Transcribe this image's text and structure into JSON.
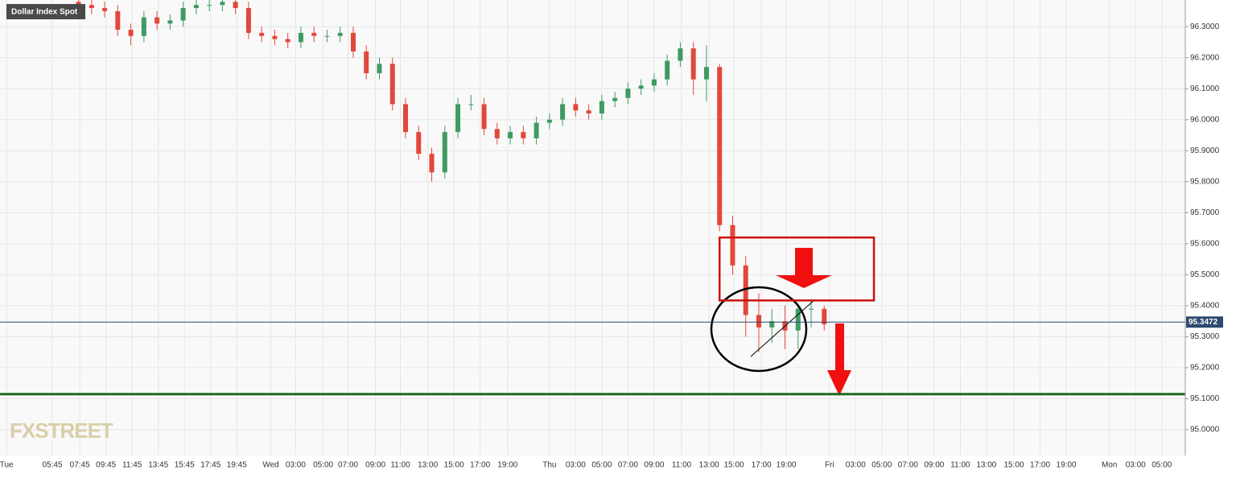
{
  "chart_data": {
    "type": "candlestick",
    "title": "Dollar Index Spot",
    "watermark": "FXSTREET",
    "up_color": "#3f9a63",
    "down_color": "#e2473b",
    "grid": true,
    "xlim": [
      0,
      90.6
    ],
    "ylim": [
      94.917,
      96.386
    ],
    "xticks": [
      {
        "value": 0.5,
        "label": "Tue"
      },
      {
        "value": 4,
        "label": "05:45"
      },
      {
        "value": 6.1,
        "label": "07:45"
      },
      {
        "value": 8.1,
        "label": "09:45"
      },
      {
        "value": 10.1,
        "label": "11:45"
      },
      {
        "value": 12.1,
        "label": "13:45"
      },
      {
        "value": 14.1,
        "label": "15:45"
      },
      {
        "value": 16.1,
        "label": "17:45"
      },
      {
        "value": 18.1,
        "label": "19:45"
      },
      {
        "value": 20.7,
        "label": "Wed"
      },
      {
        "value": 22.6,
        "label": "03:00"
      },
      {
        "value": 24.7,
        "label": "05:00"
      },
      {
        "value": 26.6,
        "label": "07:00"
      },
      {
        "value": 28.7,
        "label": "09:00"
      },
      {
        "value": 30.6,
        "label": "11:00"
      },
      {
        "value": 32.7,
        "label": "13:00"
      },
      {
        "value": 34.7,
        "label": "15:00"
      },
      {
        "value": 36.7,
        "label": "17:00"
      },
      {
        "value": 38.8,
        "label": "19:00"
      },
      {
        "value": 42,
        "label": "Thu"
      },
      {
        "value": 44,
        "label": "03:00"
      },
      {
        "value": 46,
        "label": "05:00"
      },
      {
        "value": 48,
        "label": "07:00"
      },
      {
        "value": 50,
        "label": "09:00"
      },
      {
        "value": 52.1,
        "label": "11:00"
      },
      {
        "value": 54.2,
        "label": "13:00"
      },
      {
        "value": 56.1,
        "label": "15:00"
      },
      {
        "value": 58.2,
        "label": "17:00"
      },
      {
        "value": 60.1,
        "label": "19:00"
      },
      {
        "value": 63.4,
        "label": "Fri"
      },
      {
        "value": 65.4,
        "label": "03:00"
      },
      {
        "value": 67.4,
        "label": "05:00"
      },
      {
        "value": 69.4,
        "label": "07:00"
      },
      {
        "value": 71.4,
        "label": "09:00"
      },
      {
        "value": 73.4,
        "label": "11:00"
      },
      {
        "value": 75.4,
        "label": "13:00"
      },
      {
        "value": 77.5,
        "label": "15:00"
      },
      {
        "value": 79.5,
        "label": "17:00"
      },
      {
        "value": 81.5,
        "label": "19:00"
      },
      {
        "value": 84.8,
        "label": "Mon"
      },
      {
        "value": 86.8,
        "label": "03:00"
      },
      {
        "value": 88.8,
        "label": "05:00"
      }
    ],
    "yticks": [
      {
        "value": 95.0,
        "label": "95.0000"
      },
      {
        "value": 95.1,
        "label": "95.1000"
      },
      {
        "value": 95.2,
        "label": "95.2000"
      },
      {
        "value": 95.3,
        "label": "95.3000"
      },
      {
        "value": 95.4,
        "label": "95.4000"
      },
      {
        "value": 95.5,
        "label": "95.5000"
      },
      {
        "value": 95.6,
        "label": "95.6000"
      },
      {
        "value": 95.7,
        "label": "95.7000"
      },
      {
        "value": 95.8,
        "label": "95.8000"
      },
      {
        "value": 95.9,
        "label": "95.9000"
      },
      {
        "value": 96.0,
        "label": "96.0000"
      },
      {
        "value": 96.1,
        "label": "96.1000"
      },
      {
        "value": 96.2,
        "label": "96.2000"
      },
      {
        "value": 96.3,
        "label": "96.3000"
      }
    ],
    "x": [
      6,
      7,
      8,
      9,
      10,
      11,
      12,
      13,
      14,
      15,
      16,
      17,
      18,
      19,
      20,
      21,
      22,
      23,
      24,
      25,
      26,
      27,
      28,
      29,
      30,
      31,
      32,
      33,
      34,
      35,
      36,
      37,
      38,
      39,
      40,
      41,
      42,
      43,
      44,
      45,
      46,
      47,
      48,
      49,
      50,
      51,
      52,
      53,
      54,
      55,
      56,
      57,
      58,
      59,
      60,
      61,
      62,
      63
    ],
    "open": [
      96.38,
      96.37,
      96.36,
      96.35,
      96.29,
      96.27,
      96.33,
      96.31,
      96.32,
      96.36,
      96.37,
      96.37,
      96.38,
      96.36,
      96.28,
      96.27,
      96.26,
      96.25,
      96.28,
      96.27,
      96.27,
      96.28,
      96.22,
      96.15,
      96.18,
      96.05,
      95.96,
      95.89,
      95.83,
      95.96,
      96.05,
      96.05,
      95.97,
      95.94,
      95.96,
      95.94,
      95.99,
      96.0,
      96.05,
      96.03,
      96.02,
      96.06,
      96.07,
      96.1,
      96.11,
      96.13,
      96.19,
      96.23,
      96.13,
      96.17,
      95.66,
      95.53,
      95.37,
      95.33,
      95.35,
      95.32,
      95.39,
      95.39
    ],
    "high": [
      96.4,
      96.39,
      96.38,
      96.37,
      96.31,
      96.35,
      96.35,
      96.34,
      96.38,
      96.39,
      96.39,
      96.4,
      96.4,
      96.38,
      96.3,
      96.29,
      96.28,
      96.3,
      96.3,
      96.29,
      96.3,
      96.3,
      96.24,
      96.2,
      96.2,
      96.07,
      95.98,
      95.91,
      95.98,
      96.07,
      96.08,
      96.07,
      95.99,
      95.98,
      95.98,
      96.01,
      96.02,
      96.07,
      96.07,
      96.05,
      96.08,
      96.09,
      96.12,
      96.13,
      96.15,
      96.21,
      96.25,
      96.25,
      96.24,
      96.18,
      95.69,
      95.56,
      95.44,
      95.39,
      95.4,
      95.4,
      95.42,
      95.4
    ],
    "low": [
      96.35,
      96.34,
      96.33,
      96.27,
      96.24,
      96.25,
      96.29,
      96.29,
      96.3,
      96.34,
      96.35,
      96.35,
      96.34,
      96.26,
      96.25,
      96.24,
      96.23,
      96.23,
      96.25,
      96.25,
      96.25,
      96.2,
      96.13,
      96.13,
      96.03,
      95.94,
      95.87,
      95.8,
      95.81,
      95.94,
      96.03,
      95.95,
      95.92,
      95.92,
      95.92,
      95.92,
      95.97,
      95.98,
      96.01,
      96.0,
      96.0,
      96.04,
      96.05,
      96.08,
      96.09,
      96.11,
      96.17,
      96.08,
      96.06,
      95.64,
      95.5,
      95.3,
      95.25,
      95.28,
      95.26,
      95.26,
      95.33,
      95.32
    ],
    "close": [
      96.37,
      96.36,
      96.35,
      96.29,
      96.27,
      96.33,
      96.31,
      96.32,
      96.36,
      96.37,
      96.37,
      96.38,
      96.36,
      96.28,
      96.27,
      96.26,
      96.25,
      96.28,
      96.27,
      96.27,
      96.28,
      96.22,
      96.15,
      96.18,
      96.05,
      95.96,
      95.89,
      95.83,
      95.96,
      96.05,
      96.05,
      95.97,
      95.94,
      95.96,
      95.94,
      95.99,
      96.0,
      96.05,
      96.03,
      96.02,
      96.06,
      96.07,
      96.1,
      96.11,
      96.13,
      96.19,
      96.23,
      96.13,
      96.17,
      95.66,
      95.53,
      95.37,
      95.33,
      95.35,
      95.32,
      95.39,
      95.39,
      95.34
    ],
    "last_price": 95.3472,
    "last_price_color": "#2c4a6e",
    "support_level": 95.115,
    "support_color": "#1d6b22",
    "zone": {
      "ylim": [
        95.417,
        95.62
      ],
      "xlim": [
        55,
        66.8
      ],
      "color": "#cc1111"
    }
  }
}
